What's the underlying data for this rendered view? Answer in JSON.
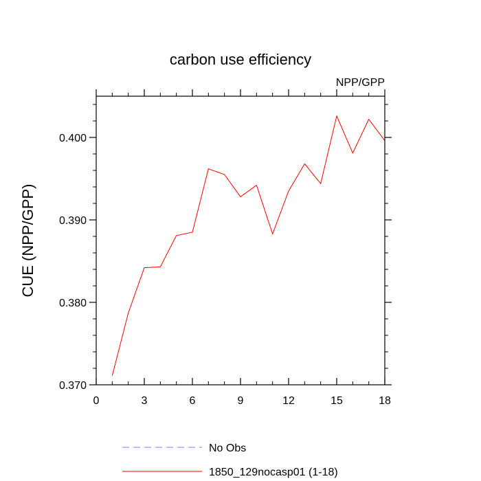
{
  "chart_data": {
    "type": "line",
    "title": "carbon use efficiency",
    "subtitle": "NPP/GPP",
    "xlabel": "",
    "ylabel": "CUE  (NPP/GPP)",
    "xlim": [
      0,
      18
    ],
    "ylim": [
      0.37,
      0.405
    ],
    "xticks": [
      0,
      3,
      6,
      9,
      12,
      15,
      18
    ],
    "xtick_labels": [
      "0",
      "3",
      "6",
      "9",
      "12",
      "15",
      "18"
    ],
    "yticks": [
      0.37,
      0.38,
      0.39,
      0.4
    ],
    "ytick_labels": [
      "0.370",
      "0.380",
      "0.390",
      "0.400"
    ],
    "grid": false,
    "legend_position": "bottom",
    "series": [
      {
        "name": "No Obs",
        "color": "#7b7bff",
        "dash": "dashed",
        "x": [],
        "values": []
      },
      {
        "name": "1850_129nocasp01 (1-18)",
        "color": "#ff0000",
        "dash": "solid",
        "x": [
          1,
          2,
          3,
          4,
          5,
          6,
          7,
          8,
          9,
          10,
          11,
          12,
          13,
          14,
          15,
          16,
          17,
          18
        ],
        "values": [
          0.3711,
          0.3787,
          0.3842,
          0.3843,
          0.3881,
          0.3885,
          0.3962,
          0.3955,
          0.3928,
          0.3942,
          0.3883,
          0.3935,
          0.3968,
          0.3944,
          0.4026,
          0.3981,
          0.4022,
          0.3996
        ]
      }
    ]
  }
}
